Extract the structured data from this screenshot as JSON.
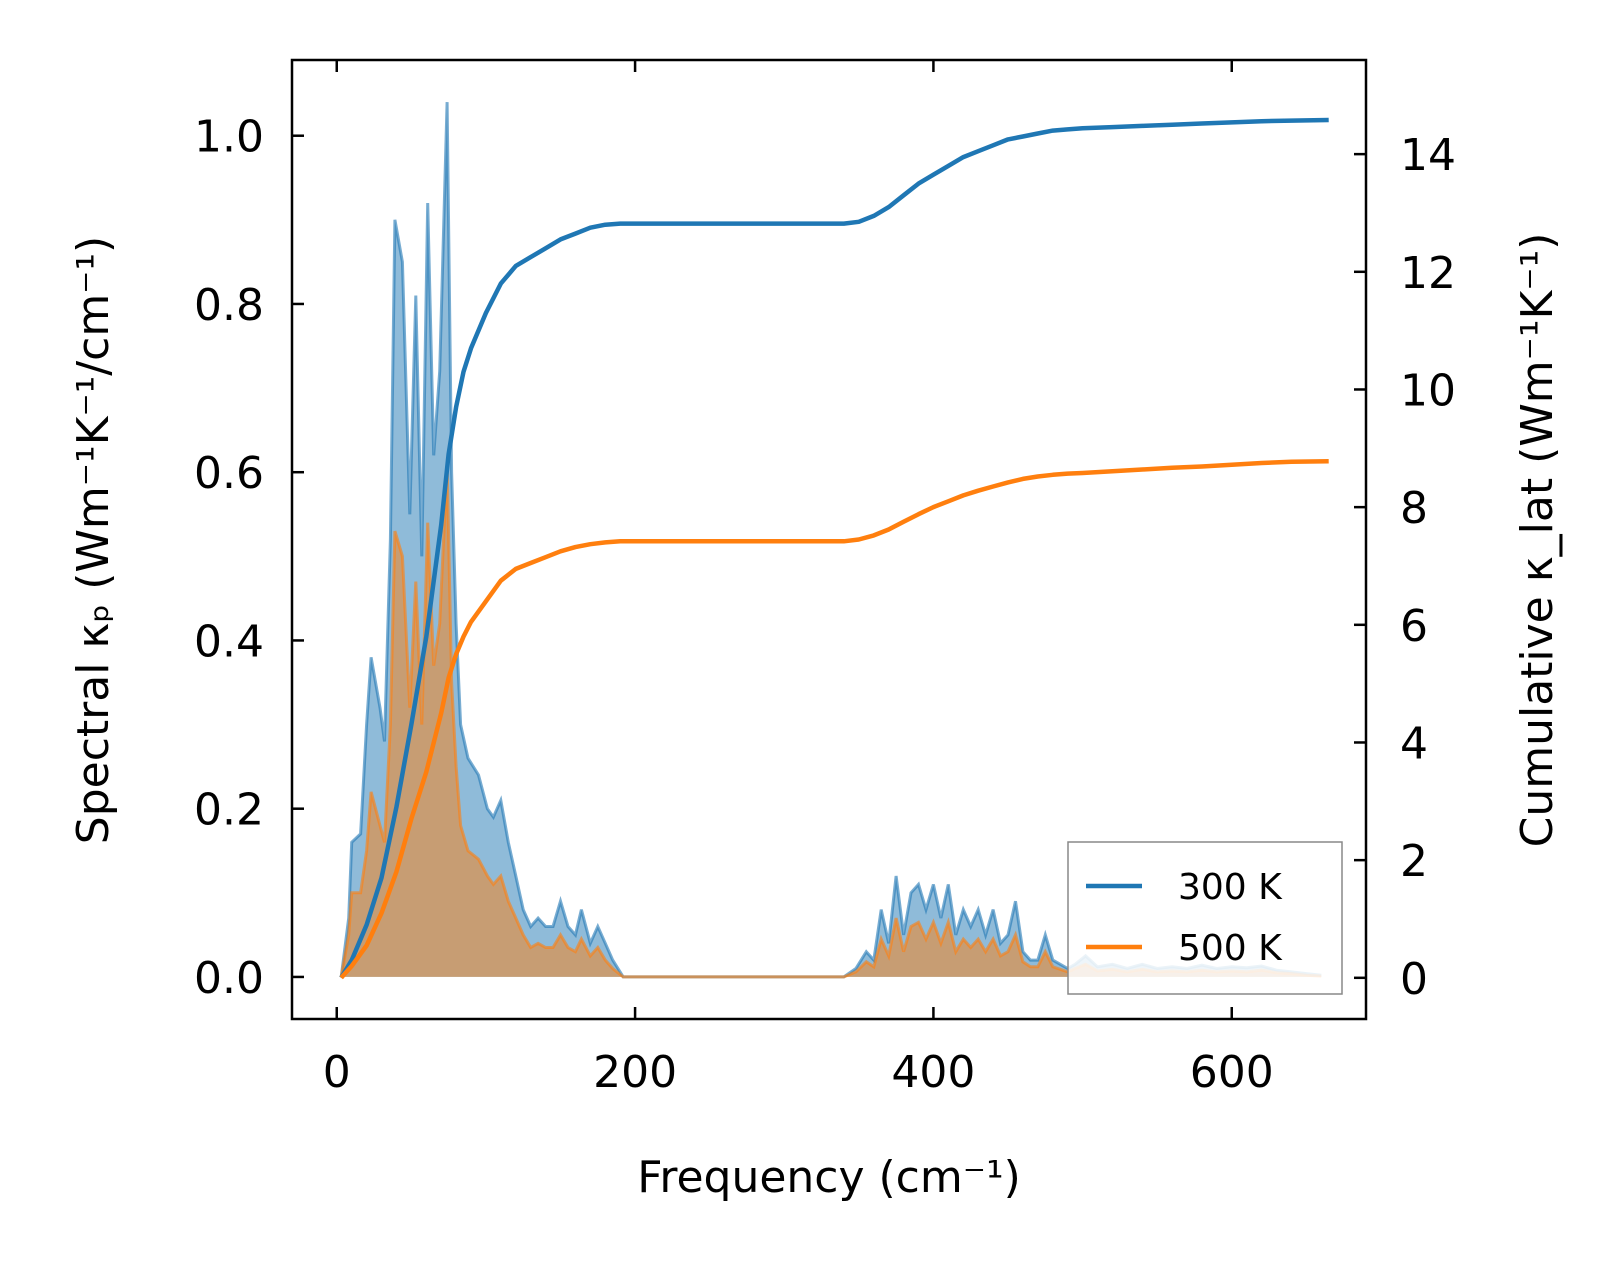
{
  "chart_data": {
    "type": "area",
    "xlabel": "Frequency (cm⁻¹)",
    "ylabel_left": "Spectral κₚ (Wm⁻¹K⁻¹/cm⁻¹)",
    "ylabel_right": "Cumulative κ_lat (Wm⁻¹K⁻¹)",
    "xlim": [
      -30,
      690
    ],
    "ylim_left": [
      -0.05,
      1.09
    ],
    "ylim_right": [
      -0.7,
      15.6
    ],
    "x_ticks": [
      0,
      200,
      400,
      600
    ],
    "x_tick_labels": [
      "0",
      "200",
      "400",
      "600"
    ],
    "y_left_ticks": [
      0.0,
      0.2,
      0.4,
      0.6,
      0.8,
      1.0
    ],
    "y_left_tick_labels": [
      "0.0",
      "0.2",
      "0.4",
      "0.6",
      "0.8",
      "1.0"
    ],
    "y_right_ticks": [
      0,
      2,
      4,
      6,
      8,
      10,
      12,
      14
    ],
    "y_right_tick_labels": [
      "0",
      "2",
      "4",
      "6",
      "8",
      "10",
      "12",
      "14"
    ],
    "legend_position": "bottom-right",
    "grid": false,
    "series": [
      {
        "name": "300 K",
        "color": "#1f77b4",
        "spectral": [
          [
            3,
            0
          ],
          [
            8,
            0.07
          ],
          [
            10,
            0.16
          ],
          [
            16,
            0.17
          ],
          [
            20,
            0.3
          ],
          [
            23,
            0.38
          ],
          [
            29,
            0.32
          ],
          [
            32,
            0.28
          ],
          [
            36,
            0.52
          ],
          [
            39,
            0.9
          ],
          [
            44,
            0.85
          ],
          [
            49,
            0.55
          ],
          [
            53,
            0.81
          ],
          [
            57,
            0.5
          ],
          [
            61,
            0.92
          ],
          [
            65,
            0.62
          ],
          [
            69,
            0.72
          ],
          [
            74,
            1.04
          ],
          [
            77,
            0.6
          ],
          [
            80,
            0.42
          ],
          [
            83,
            0.3
          ],
          [
            88,
            0.26
          ],
          [
            95,
            0.24
          ],
          [
            101,
            0.2
          ],
          [
            105,
            0.19
          ],
          [
            110,
            0.21
          ],
          [
            115,
            0.16
          ],
          [
            120,
            0.12
          ],
          [
            125,
            0.08
          ],
          [
            130,
            0.06
          ],
          [
            135,
            0.07
          ],
          [
            140,
            0.06
          ],
          [
            145,
            0.06
          ],
          [
            150,
            0.09
          ],
          [
            155,
            0.06
          ],
          [
            160,
            0.05
          ],
          [
            164,
            0.08
          ],
          [
            170,
            0.04
          ],
          [
            175,
            0.06
          ],
          [
            180,
            0.04
          ],
          [
            185,
            0.02
          ],
          [
            192,
            0.0
          ],
          [
            340,
            0.0
          ],
          [
            348,
            0.01
          ],
          [
            355,
            0.03
          ],
          [
            360,
            0.02
          ],
          [
            365,
            0.08
          ],
          [
            370,
            0.04
          ],
          [
            375,
            0.12
          ],
          [
            380,
            0.05
          ],
          [
            385,
            0.1
          ],
          [
            390,
            0.11
          ],
          [
            395,
            0.08
          ],
          [
            400,
            0.11
          ],
          [
            405,
            0.07
          ],
          [
            410,
            0.11
          ],
          [
            415,
            0.05
          ],
          [
            420,
            0.08
          ],
          [
            425,
            0.06
          ],
          [
            430,
            0.08
          ],
          [
            435,
            0.05
          ],
          [
            440,
            0.08
          ],
          [
            445,
            0.04
          ],
          [
            450,
            0.05
          ],
          [
            455,
            0.09
          ],
          [
            460,
            0.03
          ],
          [
            465,
            0.02
          ],
          [
            470,
            0.02
          ],
          [
            475,
            0.05
          ],
          [
            480,
            0.02
          ],
          [
            490,
            0.01
          ],
          [
            495,
            0.015
          ],
          [
            502,
            0.025
          ],
          [
            510,
            0.012
          ],
          [
            520,
            0.015
          ],
          [
            530,
            0.01
          ],
          [
            540,
            0.015
          ],
          [
            550,
            0.01
          ],
          [
            560,
            0.012
          ],
          [
            570,
            0.01
          ],
          [
            580,
            0.014
          ],
          [
            590,
            0.01
          ],
          [
            600,
            0.012
          ],
          [
            610,
            0.011
          ],
          [
            620,
            0.013
          ],
          [
            630,
            0.008
          ],
          [
            640,
            0.006
          ],
          [
            650,
            0.004
          ],
          [
            660,
            0.002
          ]
        ],
        "cumulative": [
          [
            3,
            0
          ],
          [
            10,
            0.3
          ],
          [
            20,
            0.9
          ],
          [
            30,
            1.7
          ],
          [
            40,
            2.9
          ],
          [
            50,
            4.3
          ],
          [
            60,
            5.8
          ],
          [
            70,
            7.7
          ],
          [
            75,
            8.9
          ],
          [
            80,
            9.7
          ],
          [
            85,
            10.3
          ],
          [
            90,
            10.7
          ],
          [
            100,
            11.3
          ],
          [
            110,
            11.8
          ],
          [
            120,
            12.1
          ],
          [
            130,
            12.25
          ],
          [
            140,
            12.4
          ],
          [
            150,
            12.55
          ],
          [
            160,
            12.65
          ],
          [
            170,
            12.75
          ],
          [
            180,
            12.8
          ],
          [
            190,
            12.82
          ],
          [
            340,
            12.82
          ],
          [
            350,
            12.85
          ],
          [
            360,
            12.95
          ],
          [
            370,
            13.1
          ],
          [
            380,
            13.3
          ],
          [
            390,
            13.5
          ],
          [
            400,
            13.65
          ],
          [
            410,
            13.8
          ],
          [
            420,
            13.95
          ],
          [
            430,
            14.05
          ],
          [
            440,
            14.15
          ],
          [
            450,
            14.25
          ],
          [
            460,
            14.3
          ],
          [
            470,
            14.35
          ],
          [
            480,
            14.4
          ],
          [
            490,
            14.42
          ],
          [
            500,
            14.44
          ],
          [
            520,
            14.46
          ],
          [
            540,
            14.48
          ],
          [
            560,
            14.5
          ],
          [
            580,
            14.52
          ],
          [
            600,
            14.54
          ],
          [
            620,
            14.56
          ],
          [
            640,
            14.57
          ],
          [
            665,
            14.58
          ]
        ]
      },
      {
        "name": "500 K",
        "color": "#ff7f0e",
        "spectral": [
          [
            3,
            0
          ],
          [
            8,
            0.05
          ],
          [
            10,
            0.1
          ],
          [
            16,
            0.1
          ],
          [
            20,
            0.15
          ],
          [
            23,
            0.22
          ],
          [
            29,
            0.18
          ],
          [
            32,
            0.16
          ],
          [
            36,
            0.3
          ],
          [
            39,
            0.53
          ],
          [
            44,
            0.5
          ],
          [
            49,
            0.32
          ],
          [
            53,
            0.47
          ],
          [
            57,
            0.3
          ],
          [
            61,
            0.54
          ],
          [
            65,
            0.37
          ],
          [
            69,
            0.42
          ],
          [
            74,
            0.61
          ],
          [
            77,
            0.35
          ],
          [
            80,
            0.25
          ],
          [
            83,
            0.18
          ],
          [
            88,
            0.15
          ],
          [
            95,
            0.14
          ],
          [
            101,
            0.12
          ],
          [
            105,
            0.11
          ],
          [
            110,
            0.12
          ],
          [
            115,
            0.09
          ],
          [
            120,
            0.07
          ],
          [
            125,
            0.05
          ],
          [
            130,
            0.035
          ],
          [
            135,
            0.04
          ],
          [
            140,
            0.035
          ],
          [
            145,
            0.035
          ],
          [
            150,
            0.05
          ],
          [
            155,
            0.035
          ],
          [
            160,
            0.03
          ],
          [
            164,
            0.045
          ],
          [
            170,
            0.025
          ],
          [
            175,
            0.035
          ],
          [
            180,
            0.02
          ],
          [
            185,
            0.01
          ],
          [
            192,
            0.0
          ],
          [
            340,
            0.0
          ],
          [
            348,
            0.006
          ],
          [
            355,
            0.018
          ],
          [
            360,
            0.012
          ],
          [
            365,
            0.045
          ],
          [
            370,
            0.025
          ],
          [
            375,
            0.07
          ],
          [
            380,
            0.03
          ],
          [
            385,
            0.06
          ],
          [
            390,
            0.065
          ],
          [
            395,
            0.045
          ],
          [
            400,
            0.065
          ],
          [
            405,
            0.04
          ],
          [
            410,
            0.065
          ],
          [
            415,
            0.03
          ],
          [
            420,
            0.045
          ],
          [
            425,
            0.035
          ],
          [
            430,
            0.045
          ],
          [
            435,
            0.03
          ],
          [
            440,
            0.045
          ],
          [
            445,
            0.025
          ],
          [
            450,
            0.03
          ],
          [
            455,
            0.05
          ],
          [
            460,
            0.018
          ],
          [
            465,
            0.012
          ],
          [
            470,
            0.012
          ],
          [
            475,
            0.03
          ],
          [
            480,
            0.012
          ],
          [
            490,
            0.006
          ],
          [
            495,
            0.01
          ],
          [
            502,
            0.015
          ],
          [
            510,
            0.007
          ],
          [
            520,
            0.009
          ],
          [
            530,
            0.006
          ],
          [
            540,
            0.009
          ],
          [
            550,
            0.006
          ],
          [
            560,
            0.007
          ],
          [
            570,
            0.006
          ],
          [
            580,
            0.008
          ],
          [
            590,
            0.006
          ],
          [
            600,
            0.007
          ],
          [
            610,
            0.006
          ],
          [
            620,
            0.008
          ],
          [
            630,
            0.005
          ],
          [
            640,
            0.004
          ],
          [
            650,
            0.002
          ],
          [
            660,
            0.001
          ]
        ],
        "cumulative": [
          [
            3,
            0
          ],
          [
            10,
            0.2
          ],
          [
            20,
            0.55
          ],
          [
            30,
            1.1
          ],
          [
            40,
            1.8
          ],
          [
            50,
            2.7
          ],
          [
            60,
            3.5
          ],
          [
            70,
            4.5
          ],
          [
            75,
            5.1
          ],
          [
            80,
            5.5
          ],
          [
            85,
            5.8
          ],
          [
            90,
            6.05
          ],
          [
            100,
            6.4
          ],
          [
            110,
            6.75
          ],
          [
            120,
            6.95
          ],
          [
            130,
            7.05
          ],
          [
            140,
            7.15
          ],
          [
            150,
            7.25
          ],
          [
            160,
            7.32
          ],
          [
            170,
            7.37
          ],
          [
            180,
            7.4
          ],
          [
            190,
            7.42
          ],
          [
            340,
            7.42
          ],
          [
            350,
            7.45
          ],
          [
            360,
            7.52
          ],
          [
            370,
            7.62
          ],
          [
            380,
            7.75
          ],
          [
            390,
            7.88
          ],
          [
            400,
            8.0
          ],
          [
            410,
            8.1
          ],
          [
            420,
            8.2
          ],
          [
            430,
            8.28
          ],
          [
            440,
            8.35
          ],
          [
            450,
            8.42
          ],
          [
            460,
            8.48
          ],
          [
            470,
            8.52
          ],
          [
            480,
            8.55
          ],
          [
            490,
            8.57
          ],
          [
            500,
            8.58
          ],
          [
            520,
            8.61
          ],
          [
            540,
            8.64
          ],
          [
            560,
            8.67
          ],
          [
            580,
            8.69
          ],
          [
            600,
            8.72
          ],
          [
            620,
            8.75
          ],
          [
            640,
            8.77
          ],
          [
            665,
            8.78
          ]
        ]
      }
    ]
  }
}
